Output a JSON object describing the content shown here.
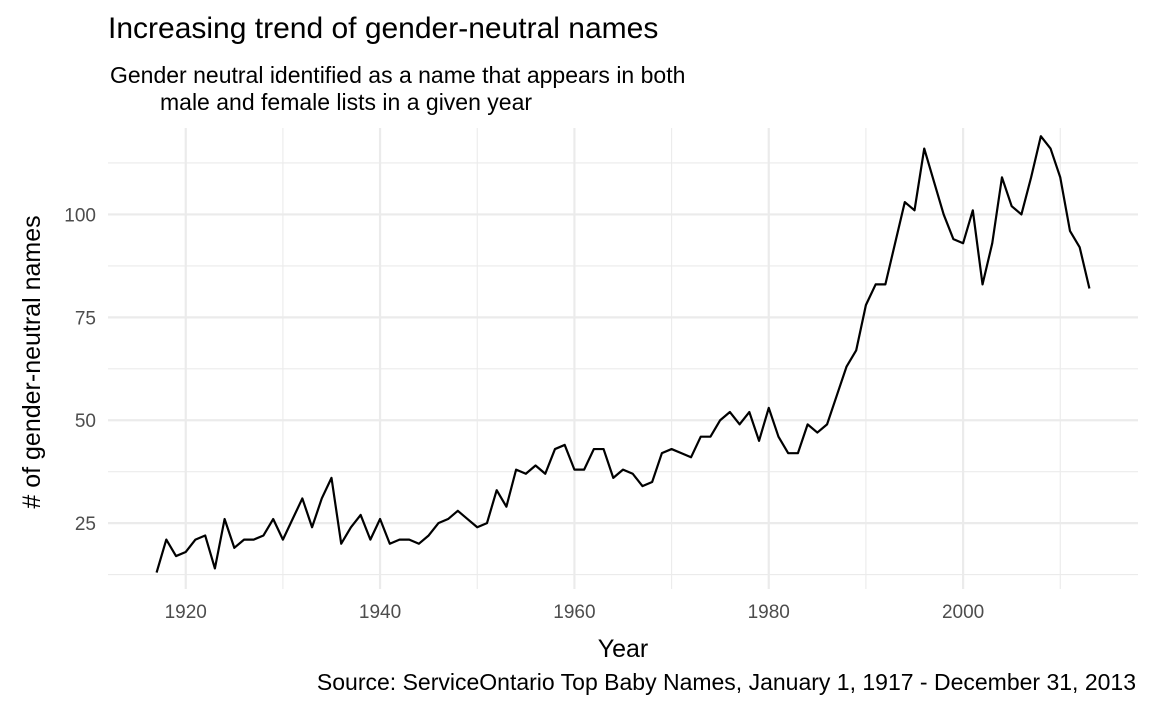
{
  "chart_data": {
    "type": "line",
    "title": "Increasing trend of gender-neutral names",
    "subtitle_lines": [
      "Gender neutral identified as a name that appears in both",
      "male and female lists in a given year"
    ],
    "xlabel": "Year",
    "ylabel": "# of gender-neutral names",
    "caption": "Source: ServiceOntario Top Baby Names, January 1, 1917 - December 31, 2013",
    "xlim": [
      1912,
      2018
    ],
    "ylim": [
      9,
      121
    ],
    "x_ticks": [
      1920,
      1940,
      1960,
      1980,
      2000
    ],
    "y_ticks": [
      25,
      50,
      75,
      100
    ],
    "grid": true,
    "series": [
      {
        "x": [
          1917,
          1918,
          1919,
          1920,
          1921,
          1922,
          1923,
          1924,
          1925,
          1926,
          1927,
          1928,
          1929,
          1930,
          1931,
          1932,
          1933,
          1934,
          1935,
          1936,
          1937,
          1938,
          1939,
          1940,
          1941,
          1942,
          1943,
          1944,
          1945,
          1946,
          1947,
          1948,
          1949,
          1950,
          1951,
          1952,
          1953,
          1954,
          1955,
          1956,
          1957,
          1958,
          1959,
          1960,
          1961,
          1962,
          1963,
          1964,
          1965,
          1966,
          1967,
          1968,
          1969,
          1970,
          1971,
          1972,
          1973,
          1974,
          1975,
          1976,
          1977,
          1978,
          1979,
          1980,
          1981,
          1982,
          1983,
          1984,
          1985,
          1986,
          1987,
          1988,
          1989,
          1990,
          1991,
          1992,
          1993,
          1994,
          1995,
          1996,
          1997,
          1998,
          1999,
          2000,
          2001,
          2002,
          2003,
          2004,
          2005,
          2006,
          2007,
          2008,
          2009,
          2010,
          2011,
          2012,
          2013
        ],
        "y": [
          13,
          21,
          17,
          18,
          21,
          22,
          14,
          26,
          19,
          21,
          21,
          22,
          26,
          21,
          26,
          31,
          24,
          31,
          36,
          20,
          24,
          27,
          21,
          26,
          20,
          21,
          21,
          20,
          22,
          25,
          26,
          28,
          26,
          24,
          25,
          33,
          29,
          38,
          37,
          39,
          37,
          43,
          44,
          38,
          38,
          43,
          43,
          36,
          38,
          37,
          34,
          35,
          42,
          43,
          42,
          41,
          46,
          46,
          50,
          52,
          49,
          52,
          45,
          53,
          46,
          42,
          42,
          49,
          47,
          49,
          56,
          63,
          67,
          78,
          83,
          83,
          93,
          103,
          101,
          116,
          108,
          100,
          94,
          93,
          101,
          83,
          93,
          109,
          102,
          100,
          109,
          119,
          116,
          109,
          96,
          92,
          82
        ]
      }
    ],
    "colors": {
      "line": "#000000",
      "grid": "#ebebeb",
      "tick_text": "#4d4d4d"
    }
  }
}
